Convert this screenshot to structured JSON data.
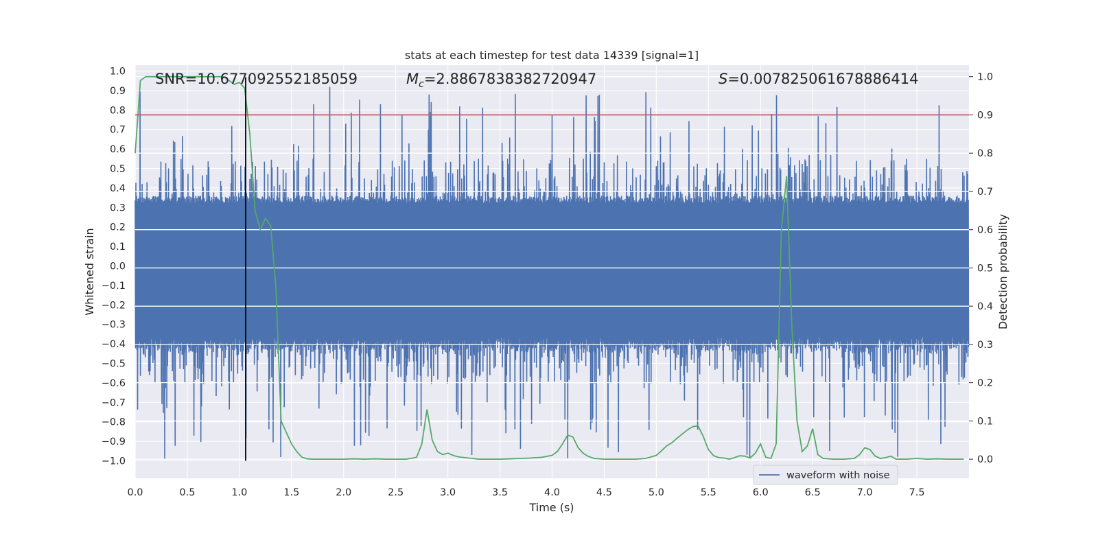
{
  "chart_data": {
    "type": "line",
    "title": "stats at each timestep for test data 14339 [signal=1]",
    "xlabel": "Time (s)",
    "ylabel_left": "Whitened strain",
    "ylabel_right": "Detection probability",
    "xlim": [
      0.0,
      8.0
    ],
    "ylim_left": [
      -1.09,
      1.03
    ],
    "ylim_right": [
      -0.05,
      1.03
    ],
    "xticks": [
      0.0,
      0.5,
      1.0,
      1.5,
      2.0,
      2.5,
      3.0,
      3.5,
      4.0,
      4.5,
      5.0,
      5.5,
      6.0,
      6.5,
      7.0,
      7.5
    ],
    "xtick_labels": [
      "0.0",
      "0.5",
      "1.0",
      "1.5",
      "2.0",
      "2.5",
      "3.0",
      "3.5",
      "4.0",
      "4.5",
      "5.0",
      "5.5",
      "6.0",
      "6.5",
      "7.0",
      "7.5"
    ],
    "yticks_left": [
      1.0,
      0.9,
      0.8,
      0.7,
      0.6,
      0.5,
      0.4,
      0.3,
      0.2,
      0.1,
      0.0,
      -0.1,
      -0.2,
      -0.3,
      -0.4,
      -0.5,
      -0.6,
      -0.7,
      -0.8,
      -0.9,
      -1.0
    ],
    "yticks_left_labels": [
      "1.0",
      "0.9",
      "0.8",
      "0.7",
      "0.6",
      "0.5",
      "0.4",
      "0.3",
      "0.2",
      "0.1",
      "0.0",
      "−0.1",
      "−0.2",
      "−0.3",
      "−0.4",
      "−0.5",
      "−0.6",
      "−0.7",
      "−0.8",
      "−0.9",
      "−1.0"
    ],
    "yticks_right": [
      1.0,
      0.9,
      0.8,
      0.7,
      0.6,
      0.5,
      0.4,
      0.3,
      0.2,
      0.1,
      0.0
    ],
    "yticks_right_labels": [
      "1.0",
      "0.9",
      "0.8",
      "0.7",
      "0.6",
      "0.5",
      "0.4",
      "0.3",
      "0.2",
      "0.1",
      "0.0"
    ],
    "annotations": {
      "snr": "SNR=10.677092552185059",
      "mc_symbol": "M",
      "mc_sub": "c",
      "mc_value": "=2.8867838382720947",
      "s_symbol": "S",
      "s_value": "=0.007825061678886414"
    },
    "threshold_probability": 0.9,
    "event_time": 1.06,
    "waveform": {
      "name": "waveform with noise",
      "color": "#4c72b0",
      "sample_count": 2400,
      "core_amplitude": 0.36,
      "typical_max": 0.55,
      "peak_max": 0.92,
      "peak_min": -1.0
    },
    "detection_probability": {
      "color": "#55a868",
      "t": [
        0.0,
        0.05,
        0.1,
        0.2,
        0.3,
        0.4,
        0.5,
        0.6,
        0.7,
        0.8,
        0.85,
        0.9,
        0.95,
        1.0,
        1.05,
        1.1,
        1.15,
        1.2,
        1.25,
        1.3,
        1.35,
        1.4,
        1.45,
        1.5,
        1.55,
        1.6,
        1.65,
        1.7,
        1.8,
        1.9,
        2.0,
        2.1,
        2.2,
        2.3,
        2.4,
        2.5,
        2.6,
        2.7,
        2.75,
        2.8,
        2.85,
        2.9,
        2.95,
        3.0,
        3.05,
        3.1,
        3.2,
        3.3,
        3.4,
        3.5,
        3.6,
        3.7,
        3.8,
        3.9,
        4.0,
        4.05,
        4.1,
        4.15,
        4.2,
        4.25,
        4.3,
        4.35,
        4.4,
        4.5,
        4.6,
        4.7,
        4.8,
        4.9,
        5.0,
        5.05,
        5.1,
        5.15,
        5.2,
        5.25,
        5.3,
        5.35,
        5.4,
        5.45,
        5.5,
        5.55,
        5.6,
        5.65,
        5.7,
        5.75,
        5.8,
        5.85,
        5.9,
        5.95,
        6.0,
        6.05,
        6.1,
        6.15,
        6.2,
        6.25,
        6.3,
        6.35,
        6.4,
        6.45,
        6.5,
        6.55,
        6.6,
        6.7,
        6.8,
        6.9,
        6.95,
        7.0,
        7.05,
        7.1,
        7.15,
        7.2,
        7.25,
        7.3,
        7.4,
        7.5,
        7.6,
        7.7,
        7.8,
        7.9,
        7.95
      ],
      "p": [
        0.8,
        0.99,
        1.0,
        1.0,
        1.0,
        1.0,
        1.0,
        1.0,
        1.0,
        1.0,
        1.0,
        0.99,
        0.98,
        0.985,
        0.97,
        0.85,
        0.65,
        0.6,
        0.63,
        0.61,
        0.45,
        0.1,
        0.07,
        0.04,
        0.02,
        0.005,
        0.001,
        0.0,
        0.0,
        0.0,
        0.0,
        0.001,
        0.0,
        0.001,
        0.0,
        0.0,
        0.0,
        0.005,
        0.04,
        0.13,
        0.05,
        0.02,
        0.012,
        0.016,
        0.01,
        0.006,
        0.003,
        0.0,
        0.0,
        0.0,
        0.001,
        0.002,
        0.003,
        0.005,
        0.01,
        0.02,
        0.04,
        0.063,
        0.058,
        0.03,
        0.015,
        0.007,
        0.002,
        0.0,
        0.0,
        0.0,
        0.0,
        0.002,
        0.01,
        0.022,
        0.035,
        0.043,
        0.055,
        0.066,
        0.077,
        0.085,
        0.087,
        0.06,
        0.025,
        0.009,
        0.004,
        0.003,
        0.0,
        0.004,
        0.009,
        0.008,
        0.003,
        0.016,
        0.04,
        0.005,
        0.002,
        0.04,
        0.6,
        0.74,
        0.35,
        0.1,
        0.02,
        0.035,
        0.08,
        0.012,
        0.002,
        0.0,
        0.0,
        0.002,
        0.012,
        0.03,
        0.025,
        0.008,
        0.002,
        0.004,
        0.008,
        0.0,
        0.0,
        0.002,
        0.0,
        0.001,
        0.0,
        0.0,
        0.0
      ]
    },
    "colors": {
      "background": "#eaeaf2",
      "grid": "#ffffff",
      "threshold": "#c44e52",
      "event_line": "#000000",
      "text": "#262626"
    },
    "legend": {
      "position": "lower-right",
      "entries": [
        "waveform with noise"
      ]
    }
  }
}
